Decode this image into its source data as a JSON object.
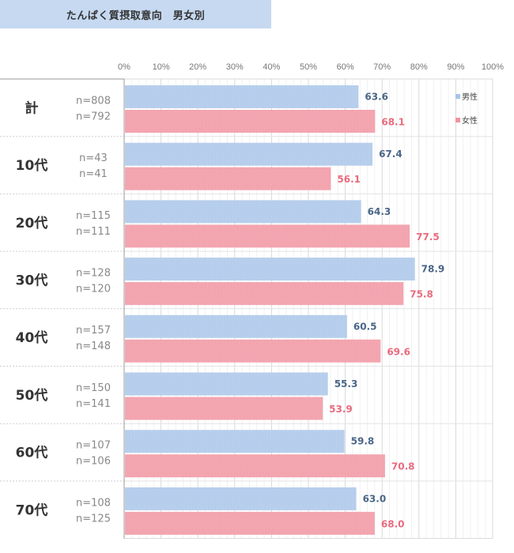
{
  "chart_data": {
    "type": "bar",
    "orientation": "horizontal",
    "title": "たんぱく質摂取意向　男女別",
    "xlabel": "",
    "ylabel": "",
    "xlim": [
      0,
      100
    ],
    "x_ticks": [
      "0%",
      "10%",
      "20%",
      "30%",
      "40%",
      "50%",
      "60%",
      "70%",
      "80%",
      "90%",
      "100%"
    ],
    "grid": true,
    "legend_position": "top-right",
    "categories": [
      "計",
      "10代",
      "20代",
      "30代",
      "40代",
      "50代",
      "60代",
      "70代"
    ],
    "series": [
      {
        "name": "男性",
        "color": "#a8c4e8",
        "label_color": "#4a6688",
        "values": [
          63.6,
          67.4,
          64.3,
          78.9,
          60.5,
          55.3,
          59.8,
          63.0
        ],
        "value_labels": [
          "63.6",
          "67.4",
          "64.3",
          "78.9",
          "60.5",
          "55.3",
          "59.8",
          "63.0"
        ],
        "n": [
          "n=808",
          "n=43",
          "n=115",
          "n=128",
          "n=157",
          "n=150",
          "n=107",
          "n=108"
        ]
      },
      {
        "name": "女性",
        "color": "#f0939f",
        "label_color": "#e96b7e",
        "values": [
          68.1,
          56.1,
          77.5,
          75.8,
          69.6,
          53.9,
          70.8,
          68.0
        ],
        "value_labels": [
          "68.1",
          "56.1",
          "77.5",
          "75.8",
          "69.6",
          "53.9",
          "70.8",
          "68.0"
        ],
        "n": [
          "n=792",
          "n=41",
          "n=111",
          "n=120",
          "n=148",
          "n=141",
          "n=106",
          "n=125"
        ]
      }
    ]
  }
}
